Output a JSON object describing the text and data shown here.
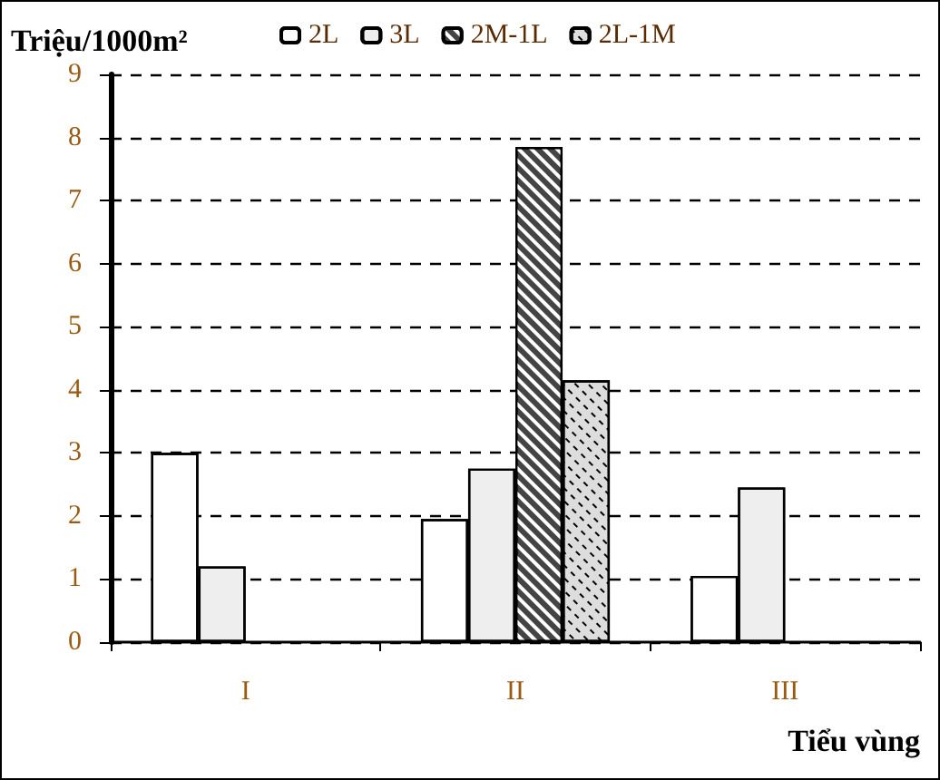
{
  "chart_data": {
    "type": "bar",
    "ylabel": "Triệu/1000m²",
    "xlabel": "Tiểu vùng",
    "categories": [
      "I",
      "II",
      "III"
    ],
    "series": [
      {
        "name": "2L",
        "color": "#ffffff",
        "values": [
          3.0,
          1.95,
          1.05
        ]
      },
      {
        "name": "3L",
        "color": "#eeeeee",
        "values": [
          1.2,
          2.75,
          2.45
        ]
      },
      {
        "name": "2M-1L",
        "color": "#444444",
        "values": [
          null,
          7.85,
          null
        ]
      },
      {
        "name": "2L-1M",
        "color": "#dddddd",
        "values": [
          null,
          4.15,
          null
        ]
      }
    ],
    "ylim": [
      0,
      9
    ],
    "yticks": [
      0,
      1,
      2,
      3,
      4,
      5,
      6,
      7,
      8,
      9
    ],
    "grid": "y",
    "legend": "top"
  }
}
